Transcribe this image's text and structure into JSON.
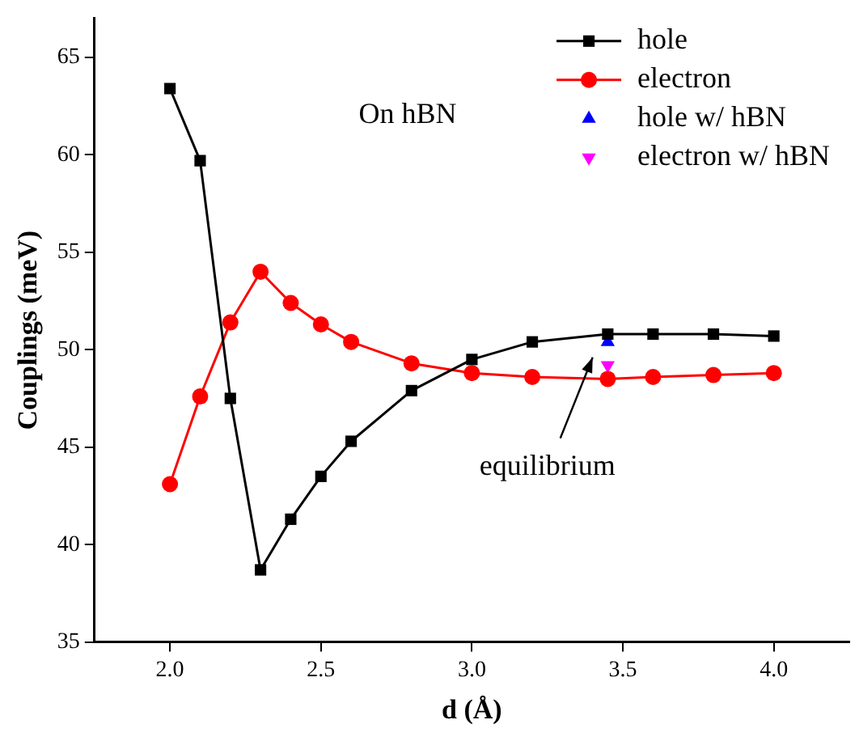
{
  "chart_data": {
    "type": "line",
    "xlabel": "d (Å)",
    "ylabel": "Couplings (meV)",
    "xlim": [
      1.75,
      4.25
    ],
    "xticks": [
      {
        "value": 2,
        "label": "2.0"
      },
      {
        "value": 2.5,
        "label": "2.5"
      },
      {
        "value": 3,
        "label": "3.0"
      },
      {
        "value": 3.5,
        "label": "3.5"
      },
      {
        "value": 4,
        "label": "4.0"
      }
    ],
    "ylim": [
      35,
      67
    ],
    "yticks": [
      35,
      40,
      45,
      50,
      55,
      60,
      65
    ],
    "grid": false,
    "legend": "top right",
    "annotations": [
      "On hBN",
      "equilibrium"
    ],
    "series": [
      {
        "name": "hole",
        "type": "line",
        "color": "#000000",
        "marker": "square",
        "x": [
          2.0,
          2.1,
          2.2,
          2.3,
          2.4,
          2.5,
          2.6,
          2.8,
          3.0,
          3.2,
          3.45,
          3.6,
          3.8,
          4.0
        ],
        "values": [
          63.4,
          59.7,
          47.5,
          38.7,
          41.3,
          43.5,
          45.3,
          47.9,
          49.5,
          50.4,
          50.8,
          50.8,
          50.8,
          50.7
        ]
      },
      {
        "name": "electron",
        "type": "line",
        "color": "#ff0000",
        "marker": "circle",
        "x": [
          2.0,
          2.1,
          2.2,
          2.3,
          2.4,
          2.5,
          2.6,
          2.8,
          3.0,
          3.2,
          3.45,
          3.6,
          3.8,
          4.0
        ],
        "values": [
          43.1,
          47.6,
          51.4,
          54.0,
          52.4,
          51.3,
          50.4,
          49.3,
          48.8,
          48.6,
          48.5,
          48.6,
          48.7,
          48.8
        ]
      },
      {
        "name": "hole w/ hBN",
        "type": "scatter",
        "color": "#0000ff",
        "marker": "triangle",
        "x": [
          3.45
        ],
        "values": [
          50.4
        ]
      },
      {
        "name": "electron w/ hBN",
        "type": "scatter",
        "color": "#ff00ff",
        "marker": "triangle-down",
        "x": [
          3.45
        ],
        "values": [
          49.2
        ]
      }
    ]
  }
}
